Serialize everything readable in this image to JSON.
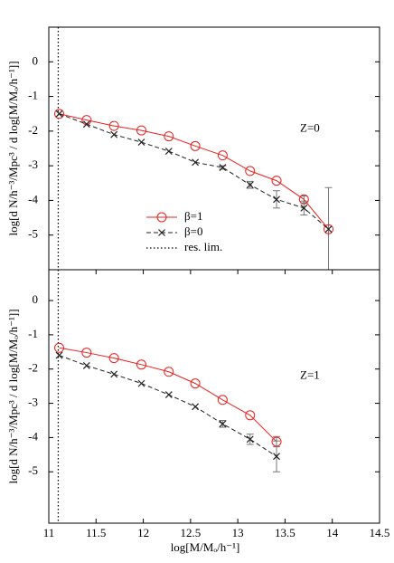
{
  "chart_data": [
    {
      "type": "line",
      "annotation": "Z=0",
      "ylabel": "log[d N/h⁻³/Mpc³ / d log[M/Mₒ/h⁻¹]]",
      "x": [
        11.11,
        11.4,
        11.69,
        11.98,
        12.27,
        12.55,
        12.84,
        13.13,
        13.41,
        13.7,
        13.96
      ],
      "series": [
        {
          "name": "β=1",
          "color": "#e8201c",
          "marker": "circle",
          "dash": "solid",
          "values": [
            -1.5,
            -1.68,
            -1.85,
            -1.98,
            -2.15,
            -2.43,
            -2.7,
            -3.15,
            -3.43,
            -3.97,
            -4.83
          ],
          "errors": [
            0,
            0,
            0,
            0,
            0,
            0,
            0,
            0,
            0,
            0.1,
            1.2
          ]
        },
        {
          "name": "β=0",
          "color": "#222222",
          "marker": "x",
          "dash": "dashed",
          "values": [
            -1.5,
            -1.8,
            -2.1,
            -2.32,
            -2.58,
            -2.9,
            -3.05,
            -3.55,
            -3.97,
            -4.22,
            -4.83
          ],
          "errors": [
            0,
            0,
            0,
            0,
            0,
            0,
            0.05,
            0.1,
            0.25,
            0.2,
            0
          ]
        }
      ],
      "reference_line": {
        "name": "res. lim.",
        "x": 11.1
      },
      "legend": "lower center",
      "xlim": [
        11,
        14.5
      ],
      "ylim": [
        -6,
        1
      ],
      "yticks": [
        0,
        -1,
        -2,
        -3,
        -4,
        -5
      ]
    },
    {
      "type": "line",
      "annotation": "Z=1",
      "ylabel": "log[d N/h⁻³/Mpc³ / d log[M/Mₒ/h⁻¹]]",
      "xlabel": "log[M/Mₒ/h⁻¹]",
      "x": [
        11.11,
        11.4,
        11.69,
        11.98,
        12.27,
        12.55,
        12.84,
        13.13,
        13.41
      ],
      "series": [
        {
          "name": "β=1",
          "color": "#e8201c",
          "marker": "circle",
          "dash": "solid",
          "values": [
            -1.38,
            -1.52,
            -1.68,
            -1.87,
            -2.08,
            -2.42,
            -2.9,
            -3.35,
            -4.12
          ],
          "errors": [
            0,
            0,
            0,
            0,
            0,
            0,
            0,
            0,
            0.15
          ]
        },
        {
          "name": "β=0",
          "color": "#222222",
          "marker": "x",
          "dash": "dashed",
          "values": [
            -1.6,
            -1.9,
            -2.15,
            -2.42,
            -2.75,
            -3.1,
            -3.6,
            -4.05,
            -4.55
          ],
          "errors": [
            0,
            0,
            0,
            0,
            0,
            0,
            0.1,
            0.15,
            0.45
          ]
        }
      ],
      "reference_line": {
        "x": 11.1
      },
      "xlim": [
        11,
        14.5
      ],
      "ylim": [
        -6.5,
        0.9
      ],
      "yticks": [
        0,
        -1,
        -2,
        -3,
        -4,
        -5
      ],
      "xticks": [
        11,
        11.5,
        12,
        12.5,
        13,
        13.5,
        14,
        14.5
      ]
    }
  ]
}
